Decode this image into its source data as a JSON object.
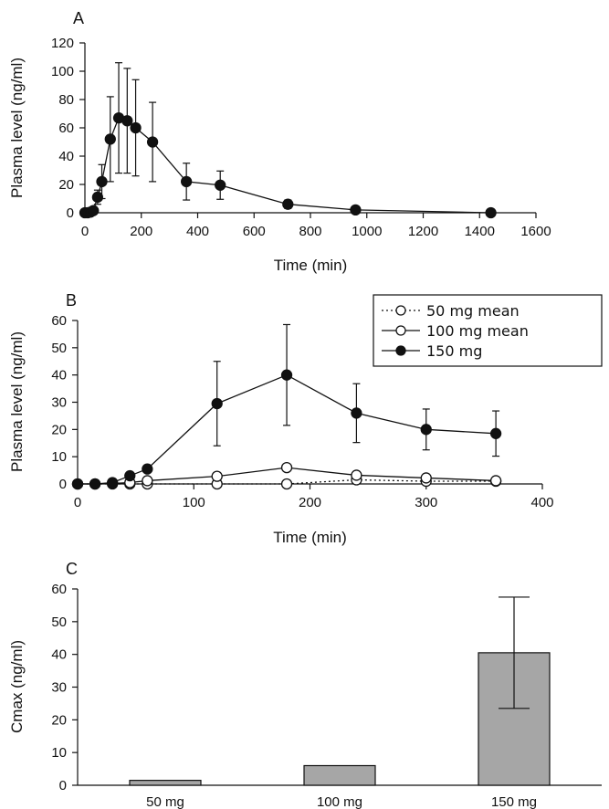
{
  "chart_data": [
    {
      "type": "line",
      "panel": "A",
      "xlabel": "Time (min)",
      "ylabel": "Plasma level (ng/ml)",
      "xlim": [
        0,
        1600
      ],
      "ylim": [
        0,
        120
      ],
      "xticks": [
        0,
        200,
        400,
        600,
        800,
        1000,
        1200,
        1400,
        1600
      ],
      "yticks": [
        0,
        20,
        40,
        60,
        80,
        100,
        120
      ],
      "series": [
        {
          "marker": "filled-circle",
          "line": "solid",
          "x": [
            0,
            10,
            20,
            30,
            45,
            60,
            90,
            120,
            150,
            180,
            240,
            360,
            480,
            720,
            960,
            1440
          ],
          "y": [
            0,
            0,
            0.5,
            1.5,
            11,
            22,
            52,
            67,
            65,
            60,
            50,
            22,
            19.5,
            6,
            2,
            0
          ],
          "err": [
            0,
            0,
            0,
            0,
            5,
            12,
            30,
            39,
            37,
            34,
            28,
            13,
            10,
            3,
            1,
            0
          ]
        }
      ]
    },
    {
      "type": "line",
      "panel": "B",
      "xlabel": "Time (min)",
      "ylabel": "Plasma level (ng/ml)",
      "xlim": [
        0,
        400
      ],
      "ylim": [
        0,
        60
      ],
      "xticks": [
        0,
        100,
        200,
        300,
        400
      ],
      "yticks": [
        0,
        10,
        20,
        30,
        40,
        50,
        60
      ],
      "legend_position": "top-right",
      "series": [
        {
          "name": "50 mg mean",
          "marker": "open-circle",
          "line": "dotted",
          "x": [
            0,
            15,
            30,
            45,
            60,
            120,
            180,
            240,
            300,
            360
          ],
          "y": [
            0,
            0,
            0,
            0,
            0,
            0,
            0,
            1.5,
            1,
            1
          ],
          "err": []
        },
        {
          "name": "100 mg mean",
          "marker": "open-circle",
          "line": "solid",
          "x": [
            0,
            15,
            30,
            45,
            60,
            120,
            180,
            240,
            300,
            360
          ],
          "y": [
            0,
            0,
            0.2,
            0.5,
            1.2,
            2.8,
            6,
            3.2,
            2.2,
            1.2
          ],
          "err": []
        },
        {
          "name": "150 mg",
          "marker": "filled-circle",
          "line": "solid",
          "x": [
            0,
            15,
            30,
            45,
            60,
            120,
            180,
            240,
            300,
            360
          ],
          "y": [
            0,
            0,
            0.5,
            3,
            5.5,
            29.5,
            40,
            26,
            20,
            18.5
          ],
          "err": [
            0,
            0,
            0,
            0,
            0,
            15.5,
            18.5,
            10.8,
            7.5,
            8.3
          ]
        }
      ]
    },
    {
      "type": "bar",
      "panel": "C",
      "xlabel": "",
      "ylabel": "Cmax (ng/ml)",
      "ylim": [
        0,
        60
      ],
      "yticks": [
        0,
        10,
        20,
        30,
        40,
        50,
        60
      ],
      "categories": [
        "50 mg",
        "100 mg",
        "150 mg"
      ],
      "values": [
        1.5,
        6,
        40.5
      ],
      "err": [
        0,
        0,
        17
      ],
      "bar_color": "#a6a6a6"
    }
  ]
}
